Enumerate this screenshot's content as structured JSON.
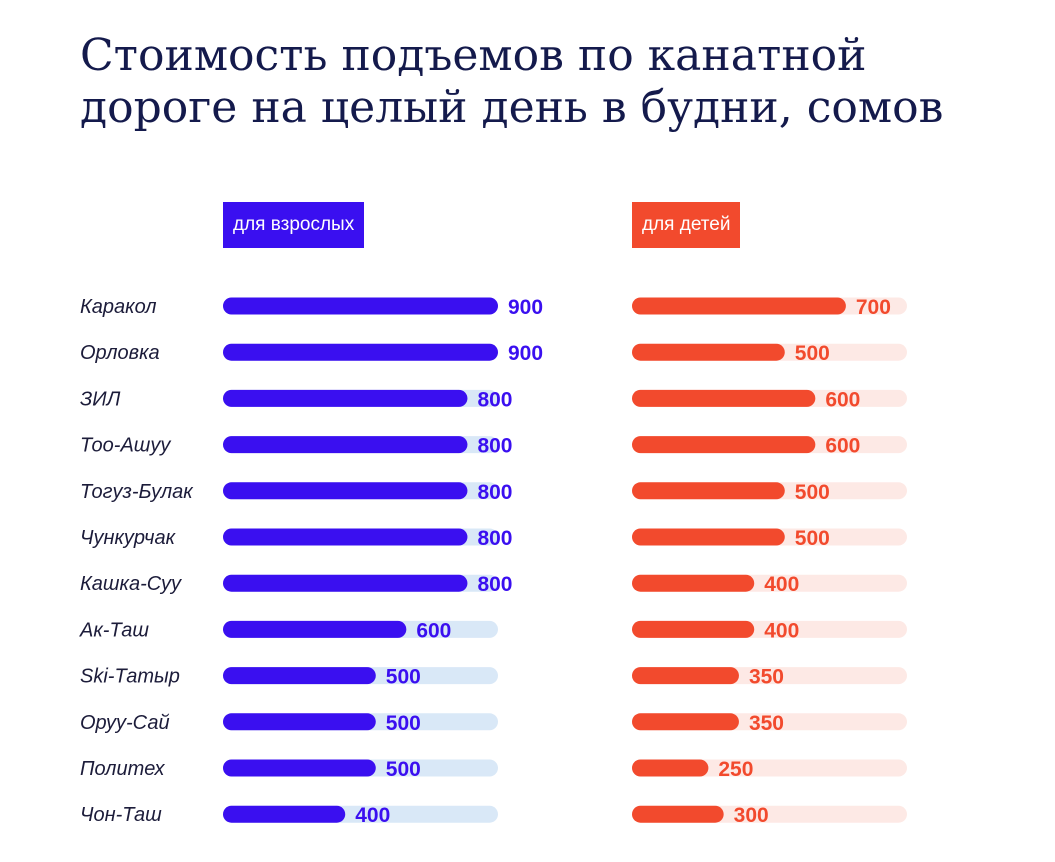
{
  "title_line1": "Стоимость подъемов по канатной",
  "title_line2": "дороге на целый день в будни, сомов",
  "colors": {
    "adult": "#3a0ff0",
    "adult_track": "#d9e8f7",
    "child": "#f24a2d",
    "child_track": "#fde9e5",
    "title": "#141a4c",
    "label": "#1c1c3a"
  },
  "chart_data": {
    "type": "bar",
    "orientation": "horizontal",
    "categories": [
      "Каракол",
      "Орловка",
      "ЗИЛ",
      "Тоо-Ашуу",
      "Тогуз-Булак",
      "Чункурчак",
      "Кашка-Суу",
      "Ак-Таш",
      "Ski-Татыр",
      "Оруу-Сай",
      "Политех",
      "Чон-Таш"
    ],
    "series": [
      {
        "name": "для взрослых",
        "values": [
          900,
          900,
          800,
          800,
          800,
          800,
          800,
          600,
          500,
          500,
          500,
          400
        ]
      },
      {
        "name": "для детей",
        "values": [
          700,
          500,
          600,
          600,
          500,
          500,
          400,
          400,
          350,
          350,
          250,
          300
        ]
      }
    ],
    "title": "Стоимость подъемов по канатной дороге на целый день в будни, сомов",
    "xlim": [
      0,
      900
    ],
    "legend": "top"
  }
}
